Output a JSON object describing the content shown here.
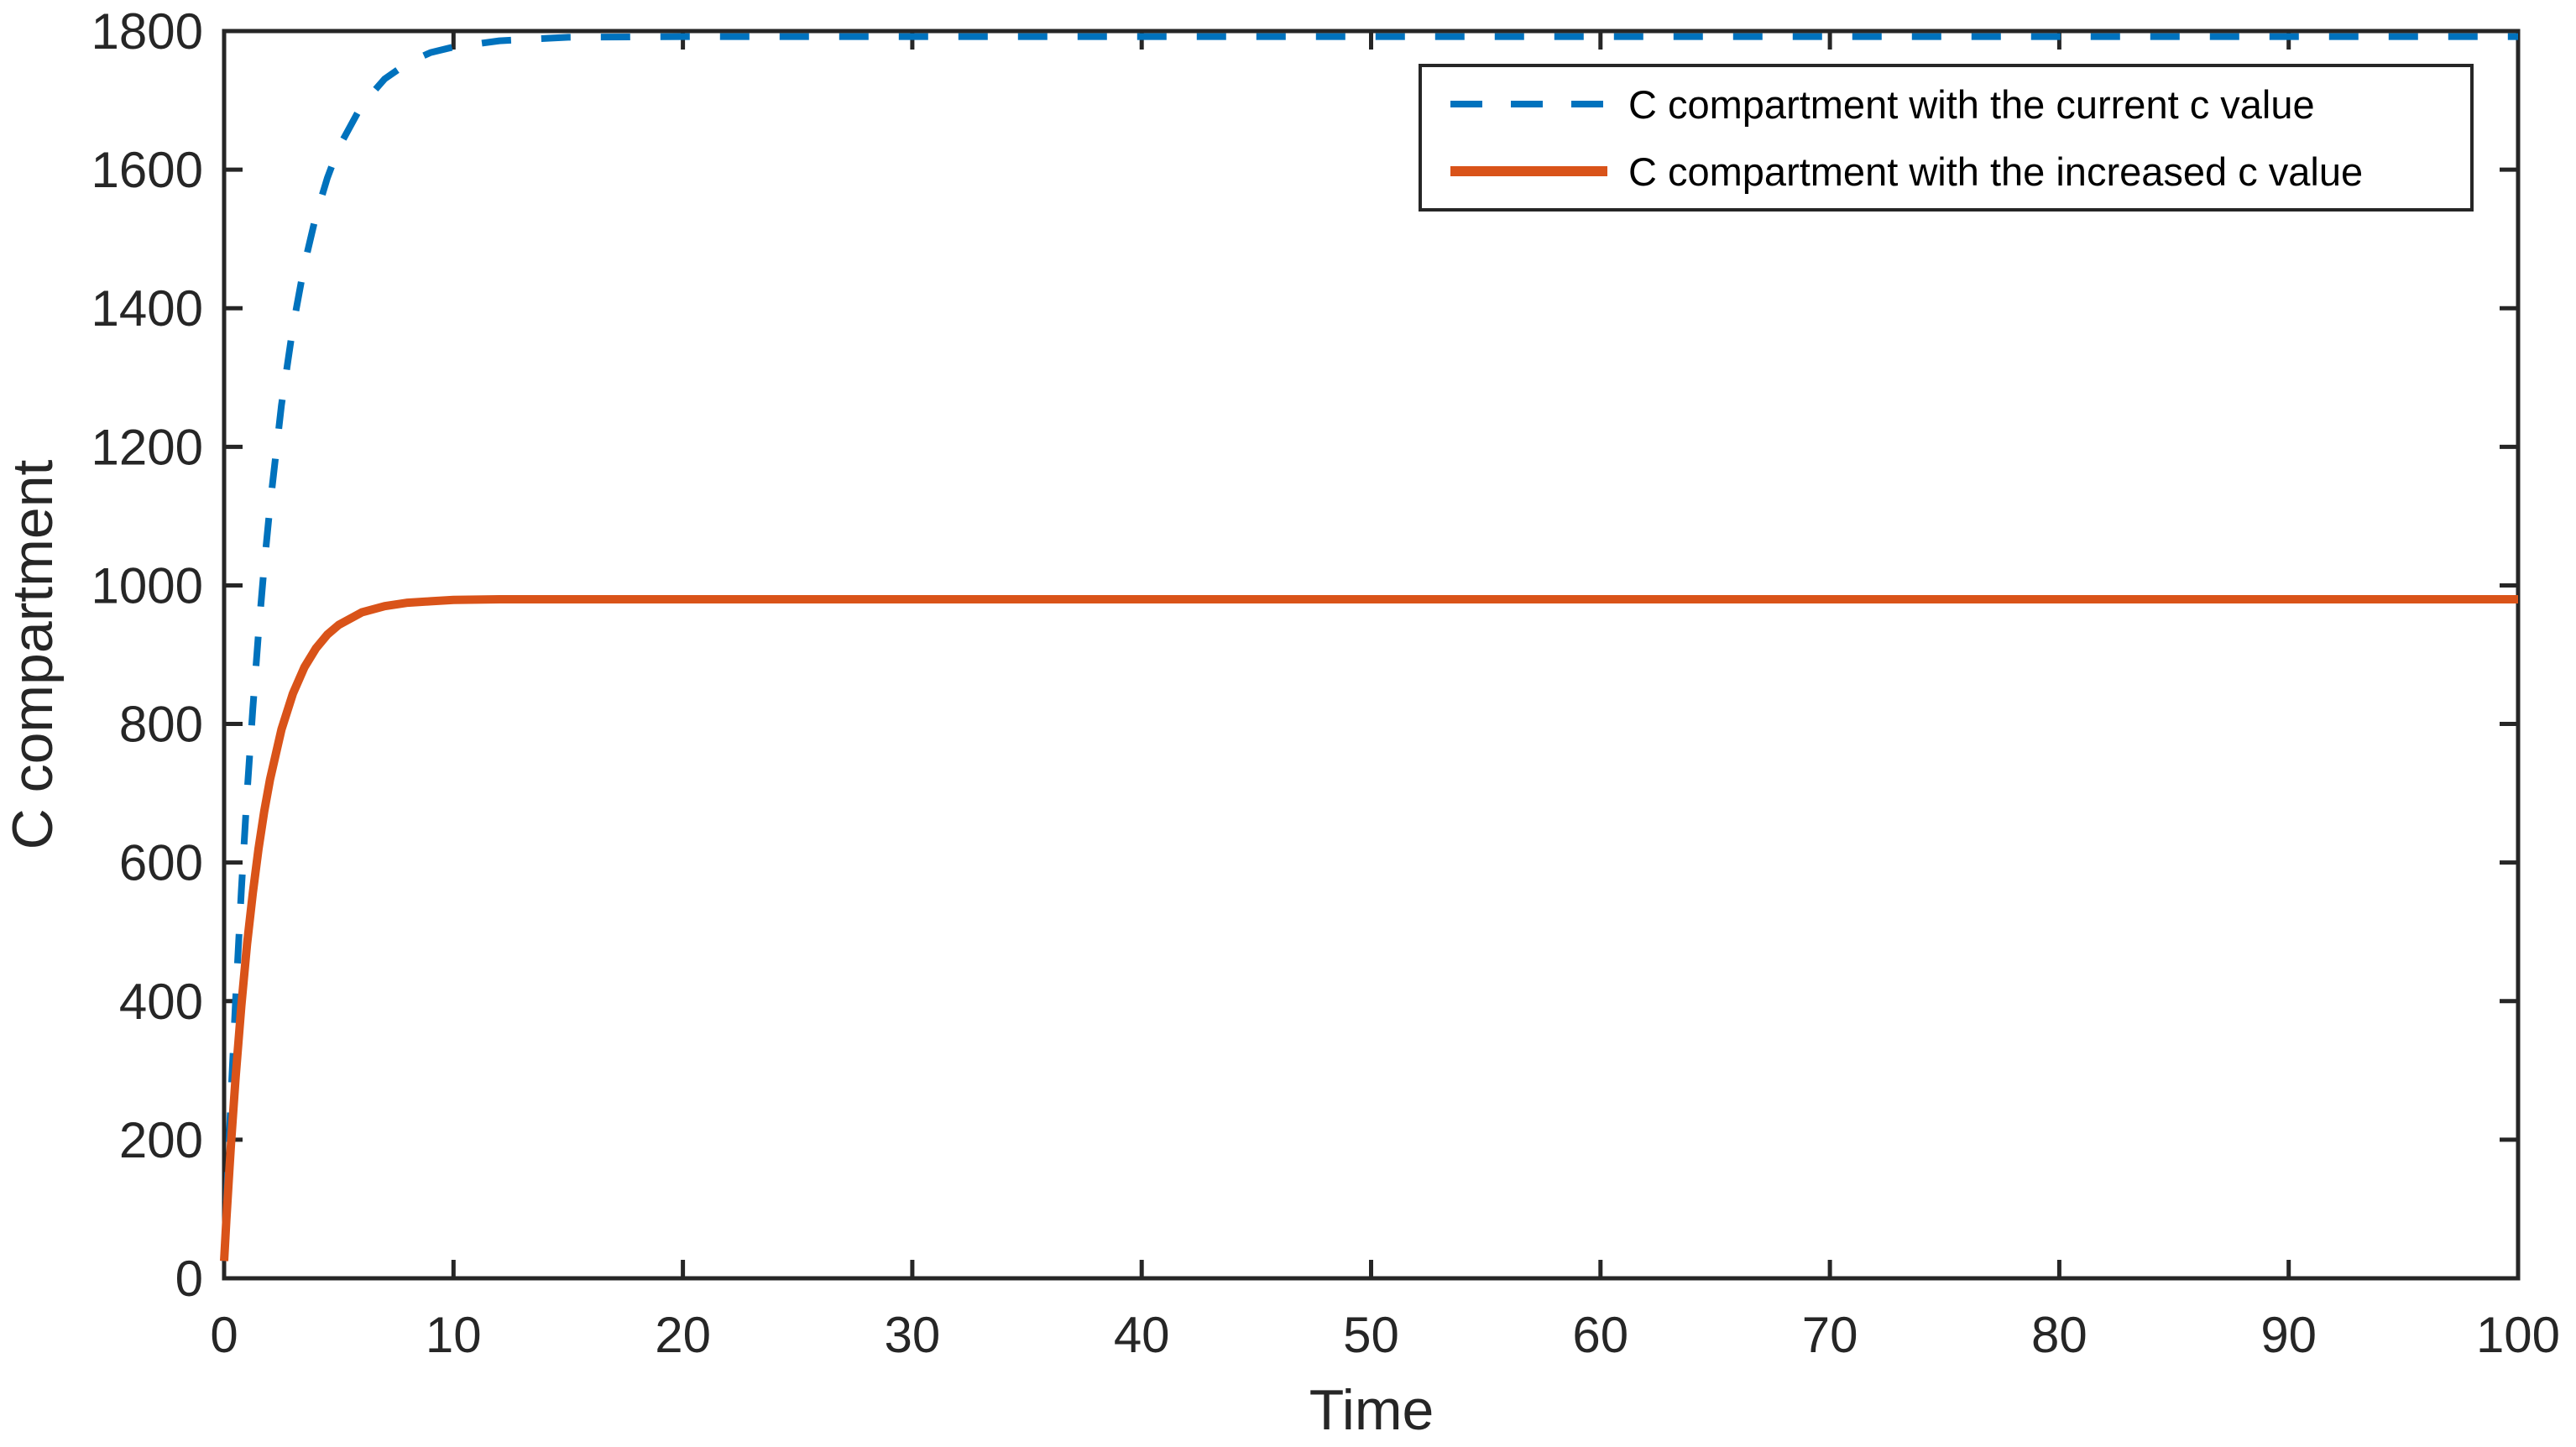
{
  "chart_data": {
    "type": "line",
    "title": "",
    "xlabel": "Time",
    "ylabel": "C compartment",
    "xlim": [
      0,
      100
    ],
    "ylim": [
      0,
      1800
    ],
    "x_ticks": [
      0,
      10,
      20,
      30,
      40,
      50,
      60,
      70,
      80,
      90,
      100
    ],
    "y_ticks": [
      0,
      200,
      400,
      600,
      800,
      1000,
      1200,
      1400,
      1600,
      1800
    ],
    "grid": false,
    "box": true,
    "tick_direction": "in",
    "axis_color": "#262626",
    "background": "#ffffff",
    "legend_position": "upper-right-inside",
    "series": [
      {
        "name": "C compartment with the current c value",
        "color": "#0072BD",
        "style": "dashed",
        "line_width": 8,
        "steady_state": 1792,
        "x": [
          0,
          0.05,
          0.1,
          0.2,
          0.3,
          0.5,
          0.75,
          1,
          1.25,
          1.5,
          1.75,
          2,
          2.5,
          3,
          3.5,
          4,
          4.5,
          5,
          6,
          7,
          8,
          9,
          10,
          12,
          15,
          20,
          30,
          40,
          50,
          60,
          70,
          80,
          90,
          100
        ],
        "y": [
          25,
          67,
          108,
          187,
          262,
          402,
          559,
          699,
          822,
          932,
          1029,
          1115,
          1260,
          1373,
          1463,
          1533,
          1588,
          1632,
          1693,
          1731,
          1754,
          1769,
          1777,
          1786,
          1791,
          1792,
          1792,
          1792,
          1792,
          1792,
          1792,
          1792,
          1792,
          1792
        ]
      },
      {
        "name": "C compartment with the increased c value",
        "color": "#D95319",
        "style": "solid",
        "line_width": 10,
        "steady_state": 980,
        "x": [
          0,
          0.05,
          0.1,
          0.2,
          0.3,
          0.5,
          0.75,
          1,
          1.25,
          1.5,
          1.75,
          2,
          2.5,
          3,
          3.5,
          4,
          4.5,
          5,
          6,
          7,
          8,
          9,
          10,
          12,
          15,
          20,
          30,
          40,
          50,
          60,
          70,
          80,
          90,
          100
        ],
        "y": [
          25,
          56,
          85,
          141,
          194,
          290,
          393,
          482,
          556,
          620,
          674,
          720,
          792,
          844,
          882,
          909,
          929,
          943,
          961,
          970,
          975,
          977,
          979,
          980,
          980,
          980,
          980,
          980,
          980,
          980,
          980,
          980,
          980,
          980
        ]
      }
    ]
  }
}
